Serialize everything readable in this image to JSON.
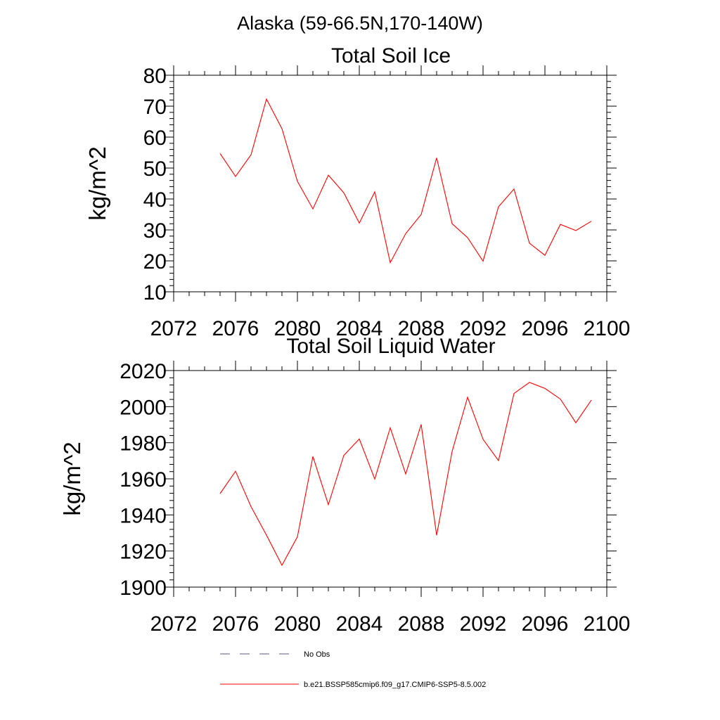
{
  "supertitle": "Alaska (59-66.5N,170-140W)",
  "legend": [
    {
      "label": "No Obs",
      "style": "dashed",
      "color": "#5a5a8c"
    },
    {
      "label": "b.e21.BSSP585cmip6.f09_g17.CMIP6-SSP5-8.5.002",
      "style": "solid",
      "color": "#ff0000"
    }
  ],
  "chart_data": [
    {
      "type": "line",
      "title": "Total Soil Ice",
      "xlabel": "",
      "ylabel": "kg/m^2",
      "xlim": [
        2072,
        2100
      ],
      "ylim": [
        10,
        80
      ],
      "xticks": [
        2072,
        2076,
        2080,
        2084,
        2088,
        2092,
        2096,
        2100
      ],
      "yticks": [
        10,
        20,
        30,
        40,
        50,
        60,
        70,
        80
      ],
      "grid": false,
      "series": [
        {
          "color": "#ff0000",
          "x": [
            2075,
            2076,
            2077,
            2078,
            2079,
            2080,
            2081,
            2082,
            2083,
            2084,
            2085,
            2086,
            2087,
            2088,
            2089,
            2090,
            2091,
            2092,
            2093,
            2094,
            2095,
            2096,
            2097,
            2098,
            2099
          ],
          "values": [
            54.7,
            47.3,
            54.3,
            72.3,
            62.7,
            45.7,
            36.8,
            47.7,
            42.0,
            32.2,
            42.3,
            19.4,
            28.8,
            35.0,
            53.3,
            32.0,
            27.5,
            19.9,
            37.5,
            43.2,
            25.7,
            21.8,
            31.8,
            29.8,
            32.8
          ]
        }
      ]
    },
    {
      "type": "line",
      "title": "Total Soil Liquid Water",
      "xlabel": "",
      "ylabel": "kg/m^2",
      "xlim": [
        2072,
        2100
      ],
      "ylim": [
        1900,
        2020
      ],
      "xticks": [
        2072,
        2076,
        2080,
        2084,
        2088,
        2092,
        2096,
        2100
      ],
      "yticks": [
        1900,
        1920,
        1940,
        1960,
        1980,
        2000,
        2020
      ],
      "grid": false,
      "series": [
        {
          "color": "#ff0000",
          "x": [
            2075,
            2076,
            2077,
            2078,
            2079,
            2080,
            2081,
            2082,
            2083,
            2084,
            2085,
            2086,
            2087,
            2088,
            2089,
            2090,
            2091,
            2092,
            2093,
            2094,
            2095,
            2096,
            2097,
            2098,
            2099
          ],
          "values": [
            1951.8,
            1964.2,
            1944.6,
            1928.8,
            1912.1,
            1927.9,
            1972.4,
            1945.7,
            1973.0,
            1982.1,
            1959.9,
            1988.3,
            1962.7,
            1990.1,
            1928.7,
            1975.2,
            2005.2,
            1981.9,
            1970.1,
            2007.3,
            2013.4,
            2010.1,
            2004.2,
            1991.1,
            2003.6
          ]
        }
      ]
    }
  ]
}
